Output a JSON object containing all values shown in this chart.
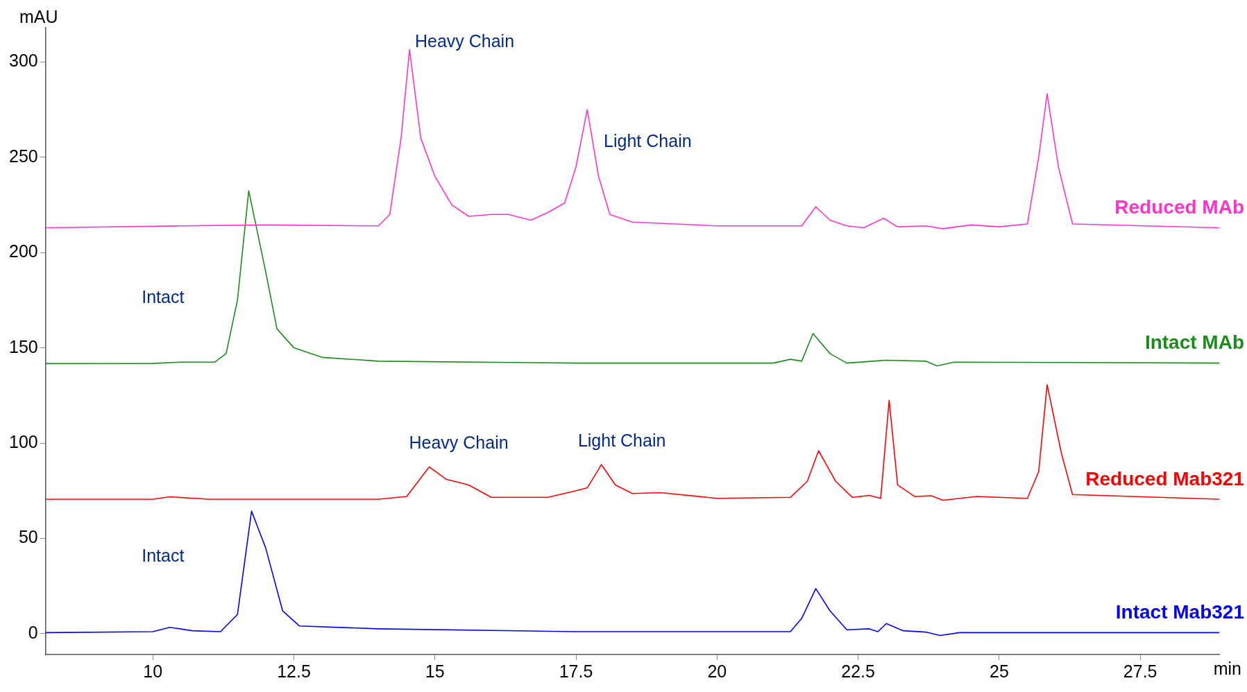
{
  "chart_data": {
    "type": "line",
    "xlabel": "min",
    "ylabel": "mAU",
    "xlim": [
      8.1,
      28.9
    ],
    "xticks": [
      10,
      12.5,
      15,
      17.5,
      20,
      22.5,
      25,
      27.5
    ],
    "ylim": [
      -11,
      318
    ],
    "yticks": [
      0,
      50,
      100,
      150,
      200,
      250,
      300
    ],
    "grid": false,
    "legend": false,
    "marker": "none",
    "line_style": "solid",
    "series": [
      {
        "name": "Reduced MAb",
        "color": "#ff33cc",
        "x": [
          8.1,
          10.5,
          12,
          14,
          14.2,
          14.4,
          14.55,
          14.75,
          15,
          15.3,
          15.6,
          16,
          16.3,
          16.7,
          17,
          17.3,
          17.5,
          17.7,
          17.9,
          18.1,
          18.5,
          20,
          21.5,
          21.75,
          22,
          22.3,
          22.6,
          22.95,
          23.2,
          23.7,
          24,
          24.5,
          25,
          25.5,
          25.7,
          25.85,
          26.05,
          26.3,
          28.9
        ],
        "values": [
          213,
          214,
          214.5,
          214,
          220,
          260,
          306.5,
          260,
          240,
          225,
          219,
          220,
          220,
          217,
          221,
          226,
          245,
          275,
          240,
          220,
          216,
          214,
          214,
          224,
          217,
          214,
          213,
          218,
          213.5,
          214,
          212.5,
          214.5,
          213.5,
          215,
          250,
          283.3,
          245,
          215,
          213
        ]
      },
      {
        "name": "Intact MAb",
        "color": "#1a8c1a",
        "x": [
          8.1,
          10,
          10.5,
          11.1,
          11.3,
          11.5,
          11.7,
          12,
          12.2,
          12.5,
          13,
          14,
          17.5,
          21,
          21.3,
          21.5,
          21.7,
          22,
          22.3,
          23,
          23.7,
          23.9,
          24.2,
          28.9
        ],
        "values": [
          141.7,
          141.8,
          142.5,
          142.5,
          147,
          175,
          232.4,
          190,
          160,
          150,
          145,
          143,
          142,
          142,
          144,
          143,
          157.5,
          147,
          142,
          143.5,
          143,
          140.5,
          142.5,
          142
        ]
      },
      {
        "name": "Reduced Mab321",
        "color": "#ff0000",
        "x": [
          8.1,
          10,
          10.3,
          11,
          14,
          14.5,
          14.9,
          15.2,
          15.4,
          15.6,
          16,
          17,
          17.5,
          17.7,
          17.95,
          18.2,
          18.5,
          19,
          20,
          21.3,
          21.6,
          21.8,
          22.1,
          22.4,
          22.7,
          22.9,
          23.05,
          23.2,
          23.5,
          23.8,
          24,
          24.6,
          25.5,
          25.7,
          25.85,
          26.1,
          26.3,
          28.9
        ],
        "values": [
          70.5,
          70.5,
          71.8,
          70.5,
          70.5,
          72,
          87.5,
          81,
          79.5,
          78,
          71.5,
          71.5,
          75,
          76.5,
          88.7,
          78,
          73.5,
          74,
          71,
          71.5,
          80,
          96,
          80,
          71.5,
          72.5,
          71,
          122.5,
          78,
          72,
          72.3,
          70,
          72,
          71,
          85,
          130.6,
          95,
          73,
          70.5
        ]
      },
      {
        "name": "Intact Mab321",
        "color": "#0000ff",
        "x": [
          8.1,
          10,
          10.3,
          10.7,
          11.2,
          11.5,
          11.75,
          12,
          12.3,
          12.6,
          14,
          17.5,
          21.3,
          21.5,
          21.75,
          22,
          22.3,
          22.7,
          22.85,
          23,
          23.3,
          23.7,
          23.95,
          24.3,
          28.9
        ],
        "values": [
          0.5,
          1,
          3.3,
          1.5,
          1,
          10,
          64.3,
          45,
          12,
          4,
          2.5,
          1,
          1,
          8,
          23.6,
          12,
          2,
          2.5,
          1,
          5.3,
          1.5,
          0.8,
          -1,
          0.5,
          0.5
        ]
      }
    ],
    "annotations": [
      "Heavy Chain",
      "Light Chain",
      "Intact",
      "Heavy Chain",
      "Light Chain",
      "Intact"
    ]
  }
}
